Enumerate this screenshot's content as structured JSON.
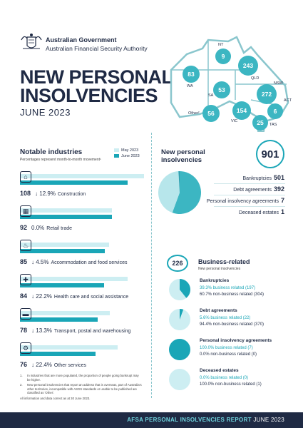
{
  "header": {
    "gov_line1": "Australian Government",
    "gov_line2": "Australian Financial Security Authority",
    "title_line1": "NEW PERSONAL",
    "title_line2": "INSOLVENCIES",
    "date": "JUNE 2023"
  },
  "map": {
    "states": [
      {
        "label": "NT",
        "value": "9"
      },
      {
        "label": "QLD",
        "value": "243"
      },
      {
        "label": "WA",
        "value": "83"
      },
      {
        "label": "SA",
        "value": "53"
      },
      {
        "label": "NSW",
        "value": "272"
      },
      {
        "label": "ACT",
        "value": "6"
      },
      {
        "label": "Other²",
        "value": "56"
      },
      {
        "label": "VIC",
        "value": "154"
      },
      {
        "label": "TAS",
        "value": "25"
      }
    ]
  },
  "industries": {
    "title": "Notable industries",
    "subtitle": "Percentages represent  month-to-month movement¹",
    "legend_prev": "May 2023",
    "legend_cur": "June 2023",
    "colors": {
      "prev": "#cdeef2",
      "cur": "#1aa6b7"
    },
    "items": [
      {
        "icon": "construction-icon",
        "value": "108",
        "arrow": "↓",
        "change": "12.9%",
        "name": "Construction",
        "prev": 124,
        "cur": 108
      },
      {
        "icon": "retail-icon",
        "value": "92",
        "arrow": "",
        "change": "0.0%",
        "name": "Retail trade",
        "prev": 92,
        "cur": 92
      },
      {
        "icon": "accommodation-icon",
        "value": "85",
        "arrow": "↓",
        "change": "4.5%",
        "name": "Accommodation and food services",
        "prev": 89,
        "cur": 85
      },
      {
        "icon": "health-icon",
        "value": "84",
        "arrow": "↓",
        "change": "22.2%",
        "name": "Health care and social assistance",
        "prev": 108,
        "cur": 84
      },
      {
        "icon": "transport-icon",
        "value": "78",
        "arrow": "↓",
        "change": "13.3%",
        "name": "Transport, postal and warehousing",
        "prev": 90,
        "cur": 78
      },
      {
        "icon": "other-services-icon",
        "value": "76",
        "arrow": "↓",
        "change": "22.4%",
        "name": "Other services",
        "prev": 98,
        "cur": 76
      }
    ]
  },
  "notes": [
    {
      "n": "1.",
      "text": "In industries that are more populated, the proportion of people going bankrupt may be higher."
    },
    {
      "n": "2.",
      "text": "New personal insolvencies that report an address that is overseas, part of Australia's other territories, incompatible with ASGS standards or unable to be published are classified as 'Other'."
    },
    {
      "n": "",
      "text": "All information and data correct as at 30 June 2023."
    }
  ],
  "new_personal": {
    "title_line1": "New personal",
    "title_line2": "insolvencies",
    "total": "901",
    "breakdown": [
      {
        "label": "Bankruptcies",
        "value": "501"
      },
      {
        "label": "Debt agreements",
        "value": "392"
      },
      {
        "label": "Personal insolvency agreements",
        "value": "7"
      },
      {
        "label": "Deceased estates",
        "value": "1"
      }
    ],
    "pie_colors": [
      "#3cb6c2",
      "#b7e6eb",
      "#1aa6b7",
      "#1f2a44"
    ]
  },
  "business": {
    "total": "226",
    "title": "Business-related",
    "subtitle": "New personal insolvencies",
    "items": [
      {
        "title": "Bankruptcies",
        "line1": "39.3% business related (197)",
        "line2": "60.7% non-business related (304)",
        "fraction": 0.393
      },
      {
        "title": "Debt agreements",
        "line1": "5.6% business related (22)",
        "line2": "94.4% non-business related (370)",
        "fraction": 0.056
      },
      {
        "title": "Personal insolvency agreements",
        "line1": "100.0% business related (7)",
        "line2": "0.0% non-business related (0)",
        "fraction": 1.0
      },
      {
        "title": "Deceased estates",
        "line1": "0.0% business related (0)",
        "line2": "100.0% non-business related (1)",
        "fraction": 0.0
      }
    ]
  },
  "footer": {
    "bold": "AFSA PERSONAL INSOLVENCIES REPORT",
    "normal": " JUNE 2023"
  }
}
